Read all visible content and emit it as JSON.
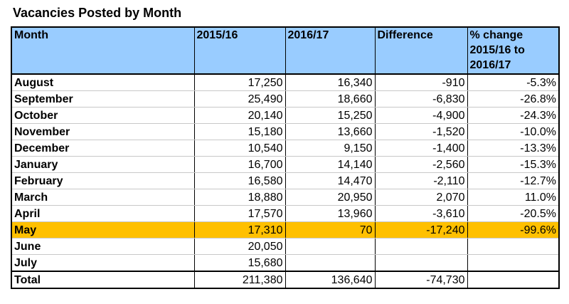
{
  "title": "Vacancies Posted by Month",
  "headers": {
    "month": "Month",
    "y1": "2015/16",
    "y2": "2016/17",
    "diff": "Difference",
    "pct": "% change 2015/16 to 2016/17"
  },
  "rows": [
    {
      "month": "August",
      "y1": "17,250",
      "y2": "16,340",
      "diff": "-910",
      "pct": "-5.3%"
    },
    {
      "month": "September",
      "y1": "25,490",
      "y2": "18,660",
      "diff": "-6,830",
      "pct": "-26.8%"
    },
    {
      "month": "October",
      "y1": "20,140",
      "y2": "15,250",
      "diff": "-4,900",
      "pct": "-24.3%"
    },
    {
      "month": "November",
      "y1": "15,180",
      "y2": "13,660",
      "diff": "-1,520",
      "pct": "-10.0%"
    },
    {
      "month": "December",
      "y1": "10,540",
      "y2": "9,150",
      "diff": "-1,400",
      "pct": "-13.3%"
    },
    {
      "month": "January",
      "y1": "16,700",
      "y2": "14,140",
      "diff": "-2,560",
      "pct": "-15.3%"
    },
    {
      "month": "February",
      "y1": "16,580",
      "y2": "14,470",
      "diff": "-2,110",
      "pct": "-12.7%"
    },
    {
      "month": "March",
      "y1": "18,880",
      "y2": "20,950",
      "diff": "2,070",
      "pct": "11.0%"
    },
    {
      "month": "April",
      "y1": "17,570",
      "y2": "13,960",
      "diff": "-3,610",
      "pct": "-20.5%"
    },
    {
      "month": "May",
      "y1": "17,310",
      "y2": "70",
      "diff": "-17,240",
      "pct": "-99.6%"
    },
    {
      "month": "June",
      "y1": "20,050",
      "y2": "",
      "diff": "",
      "pct": ""
    },
    {
      "month": "July",
      "y1": "15,680",
      "y2": "",
      "diff": "",
      "pct": ""
    }
  ],
  "total": {
    "month": "Total",
    "y1": "211,380",
    "y2": "136,640",
    "diff": "-74,730",
    "pct": ""
  },
  "colors": {
    "header_bg": "#99ccff",
    "highlight_bg": "#ffc000"
  }
}
